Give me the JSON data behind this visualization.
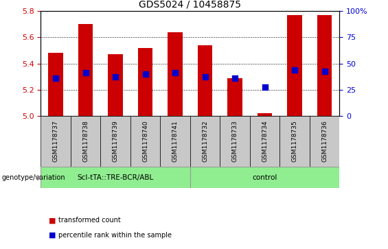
{
  "title": "GDS5024 / 10458875",
  "samples": [
    "GSM1178737",
    "GSM1178738",
    "GSM1178739",
    "GSM1178740",
    "GSM1178741",
    "GSM1178732",
    "GSM1178733",
    "GSM1178734",
    "GSM1178735",
    "GSM1178736"
  ],
  "red_values": [
    5.48,
    5.7,
    5.47,
    5.52,
    5.64,
    5.54,
    5.29,
    5.02,
    5.77,
    5.77
  ],
  "blue_values": [
    5.29,
    5.33,
    5.3,
    5.32,
    5.33,
    5.3,
    5.29,
    5.22,
    5.35,
    5.34
  ],
  "ylim_left": [
    5.0,
    5.8
  ],
  "ylim_right": [
    0,
    100
  ],
  "right_ticks": [
    0,
    25,
    50,
    75,
    100
  ],
  "right_tick_labels": [
    "0",
    "25",
    "50",
    "75",
    "100%"
  ],
  "left_ticks": [
    5.0,
    5.2,
    5.4,
    5.6,
    5.8
  ],
  "bar_color": "#cc0000",
  "dot_color": "#0000cc",
  "bg_color": "#ffffff",
  "plot_bg": "#ffffff",
  "tick_color_left": "#cc0000",
  "tick_color_right": "#0000cc",
  "grid_color": "#000000",
  "bar_width": 0.5,
  "dot_size": 40,
  "base": 5.0,
  "group1_label": "Scl-tTA::TRE-BCR/ABL",
  "group2_label": "control",
  "group_color": "#90ee90",
  "label_color": "#c8c8c8",
  "genotype_label": "genotype/variation"
}
